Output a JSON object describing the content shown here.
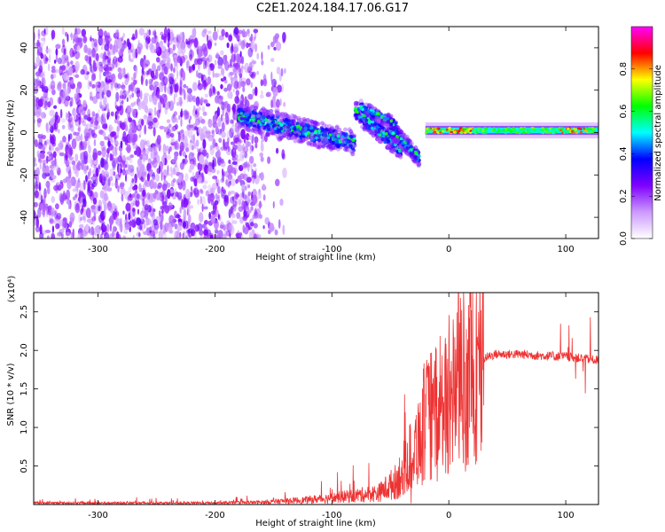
{
  "title": "C2E1.2024.184.17.06.G17",
  "chart_data": [
    {
      "type": "heatmap",
      "xlabel": "Height of straight line (km)",
      "ylabel": "Frequency (Hz)",
      "xlim": [
        -355,
        128
      ],
      "ylim": [
        -50,
        50
      ],
      "x_ticks": [
        -300,
        -200,
        -100,
        0,
        100
      ],
      "y_ticks": [
        -40,
        -20,
        0,
        20,
        40
      ],
      "colorbar": {
        "label": "Normalized spectral amplitude",
        "range": [
          0,
          1
        ],
        "ticks": [
          0.0,
          0.2,
          0.4,
          0.6,
          0.8
        ],
        "tick_labels": [
          "0.0",
          "0.2",
          "0.4",
          "0.6",
          "0.8"
        ],
        "colors": [
          "#ffffff",
          "#cc99ff",
          "#7f00ff",
          "#0000ff",
          "#00ffff",
          "#00ff00",
          "#ffff00",
          "#ff0000",
          "#ff00ff"
        ]
      },
      "regions": [
        {
          "x": [
            -355,
            -160
          ],
          "freq": [
            -50,
            48
          ],
          "amplitude": 0.2,
          "pattern": "noise"
        },
        {
          "x": [
            -180,
            -80
          ],
          "freq_center_start": 8,
          "freq_center_end": -5,
          "amplitude": 0.5
        },
        {
          "x": [
            -80,
            -25
          ],
          "freq_center_start": 10,
          "freq_center_end": -12,
          "amplitude": 0.5
        },
        {
          "x": [
            -20,
            128
          ],
          "freq_center": 1,
          "amplitude": 0.75
        }
      ]
    },
    {
      "type": "line",
      "xlabel": "Height of straight line (km)",
      "ylabel": "SNR (10 * v/v)",
      "y_multiplier": "(x10⁴)",
      "xlim": [
        -355,
        128
      ],
      "ylim": [
        0,
        2.75
      ],
      "x_ticks": [
        -300,
        -200,
        -100,
        0,
        100
      ],
      "y_ticks": [
        0.5,
        1.0,
        1.5,
        2.0,
        2.5
      ],
      "y_tick_labels": [
        "0.5",
        "1.0",
        "1.5",
        "2.0",
        "2.5"
      ],
      "color": "#ee3333",
      "envelope_x": [
        -355,
        -200,
        -160,
        -120,
        -90,
        -60,
        -45,
        -30,
        -20,
        -10,
        0,
        10,
        20,
        30,
        40,
        60,
        80,
        100,
        128
      ],
      "envelope_y": [
        0.02,
        0.02,
        0.03,
        0.06,
        0.1,
        0.15,
        0.3,
        0.7,
        1.1,
        1.2,
        1.4,
        1.6,
        1.75,
        1.9,
        1.95,
        1.95,
        1.93,
        1.92,
        1.87
      ]
    }
  ]
}
